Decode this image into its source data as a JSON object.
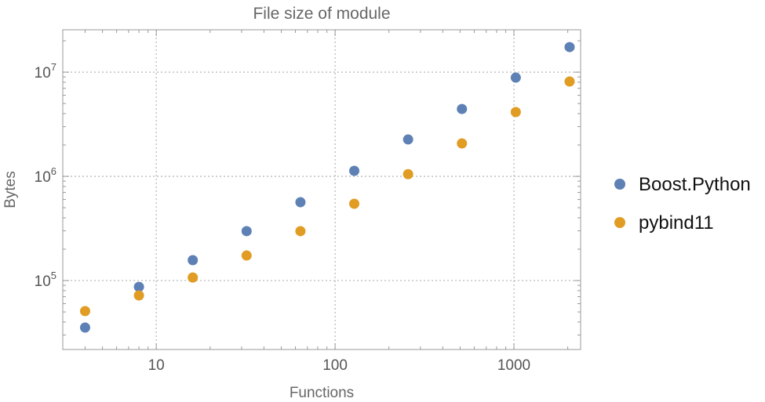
{
  "chart_data": {
    "type": "scatter",
    "title": "File size of module",
    "xlabel": "Functions",
    "ylabel": "Bytes",
    "xscale": "log",
    "yscale": "log",
    "xlim": [
      3,
      2360
    ],
    "ylim": [
      21800,
      25500000
    ],
    "x_ticks": [
      {
        "value": 10,
        "label": "10"
      },
      {
        "value": 100,
        "label": "100"
      },
      {
        "value": 1000,
        "label": "1000"
      }
    ],
    "y_ticks": [
      {
        "value": 100000,
        "base": "10",
        "exp": "5"
      },
      {
        "value": 1000000,
        "base": "10",
        "exp": "6"
      },
      {
        "value": 10000000,
        "base": "10",
        "exp": "7"
      }
    ],
    "grid": true,
    "legend": "right",
    "x": [
      4,
      8,
      16,
      32,
      64,
      128,
      256,
      512,
      1024,
      2048
    ],
    "series": [
      {
        "name": "Boost.Python",
        "color": "#5E81B5",
        "values": [
          35400,
          87000,
          157000,
          298000,
          565000,
          1130000,
          2260000,
          4430000,
          8860000,
          17400000
        ]
      },
      {
        "name": "pybind11",
        "color": "#E19C24",
        "values": [
          50900,
          72000,
          107000,
          174000,
          298000,
          546000,
          1050000,
          2070000,
          4140000,
          8130000
        ]
      }
    ]
  }
}
